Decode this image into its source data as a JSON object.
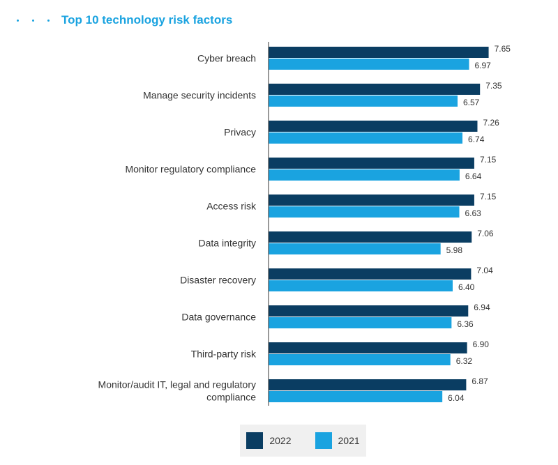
{
  "header": {
    "dots": [
      "•",
      "•",
      "•"
    ]
  },
  "chart_data": {
    "type": "bar",
    "orientation": "horizontal",
    "title": "Top 10 technology risk factors",
    "categories": [
      [
        "Cyber breach"
      ],
      [
        "Manage security incidents"
      ],
      [
        "Privacy"
      ],
      [
        "Monitor regulatory compliance"
      ],
      [
        "Access risk"
      ],
      [
        "Data integrity"
      ],
      [
        "Disaster recovery"
      ],
      [
        "Data governance"
      ],
      [
        "Third-party risk"
      ],
      [
        "Monitor/audit IT, legal and regulatory",
        "compliance"
      ]
    ],
    "series": [
      {
        "name": "2022",
        "color": "#0a3d62",
        "values": [
          7.65,
          7.35,
          7.26,
          7.15,
          7.15,
          7.06,
          7.04,
          6.94,
          6.9,
          6.87
        ],
        "labels": [
          "7.65",
          "7.35",
          "7.26",
          "7.15",
          "7.15",
          "7.06",
          "7.04",
          "6.94",
          "6.90",
          "6.87"
        ]
      },
      {
        "name": "2021",
        "color": "#1aa3e0",
        "values": [
          6.97,
          6.57,
          6.74,
          6.64,
          6.63,
          5.98,
          6.4,
          6.36,
          6.32,
          6.04
        ],
        "labels": [
          "6.97",
          "6.57",
          "6.74",
          "6.64",
          "6.63",
          "5.98",
          "6.40",
          "6.36",
          "6.32",
          "6.04"
        ]
      }
    ],
    "xlim": [
      0,
      8.3
    ],
    "grid": false,
    "legend_position": "bottom"
  }
}
